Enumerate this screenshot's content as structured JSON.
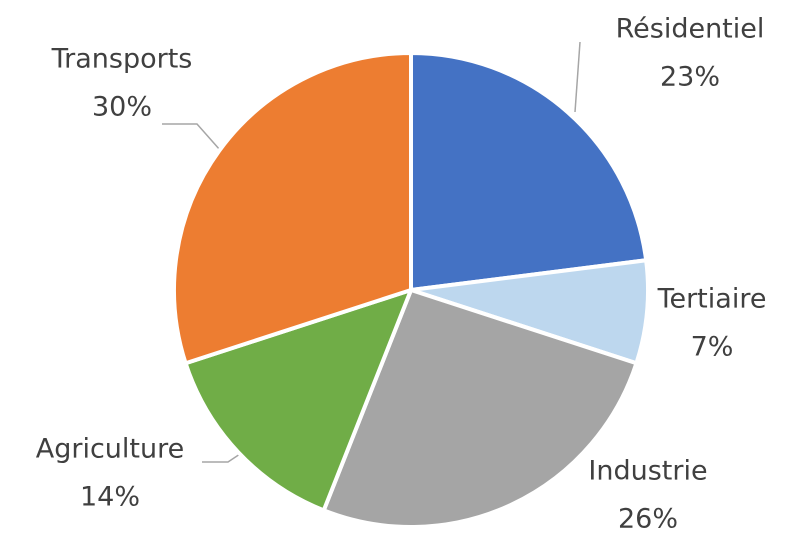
{
  "chart_data": {
    "type": "pie",
    "categories": [
      "Résidentiel",
      "Tertiaire",
      "Industrie",
      "Agriculture",
      "Transports"
    ],
    "values": [
      23,
      7,
      26,
      14,
      30
    ],
    "value_labels": [
      "23%",
      "7%",
      "26%",
      "14%",
      "30%"
    ],
    "colors": [
      "#4472c4",
      "#bdd7ee",
      "#a5a5a5",
      "#70ad47",
      "#ed7d31"
    ]
  }
}
